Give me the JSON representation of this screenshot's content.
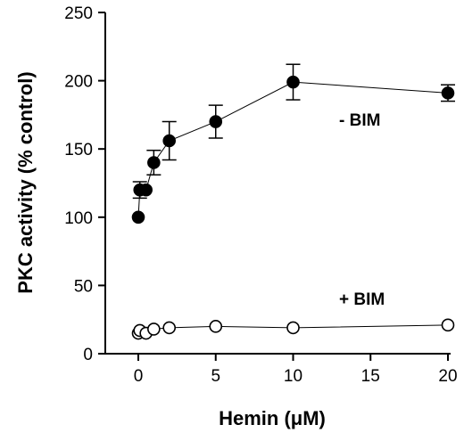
{
  "chart_data": {
    "type": "line",
    "xlabel": "Hemin (μM)",
    "ylabel": "PKC activity (% control)",
    "xlim": [
      -2,
      21
    ],
    "ylim": [
      0,
      250
    ],
    "x_ticks": [
      "0",
      "5",
      "10",
      "15",
      "20"
    ],
    "y_ticks": [
      "0",
      "50",
      "100",
      "150",
      "200",
      "250"
    ],
    "x_tick_values": [
      0,
      5,
      10,
      15,
      20
    ],
    "y_tick_values": [
      0,
      50,
      100,
      150,
      200,
      250
    ],
    "grid": false,
    "series": [
      {
        "name": "- BIM",
        "marker": "filled-circle",
        "x": [
          0,
          0.1,
          0.5,
          1,
          2,
          5,
          10,
          20
        ],
        "y": [
          100,
          120,
          120,
          140,
          156,
          170,
          199,
          191
        ],
        "error": [
          0,
          6,
          0,
          9,
          14,
          12,
          13,
          6
        ]
      },
      {
        "name": "+ BIM",
        "marker": "open-circle",
        "x": [
          0,
          0.1,
          0.5,
          1,
          2,
          5,
          10,
          20
        ],
        "y": [
          15,
          17,
          15,
          18,
          19,
          20,
          19,
          21
        ],
        "error": [
          0,
          0,
          0,
          0,
          0,
          0,
          0,
          0
        ]
      }
    ]
  }
}
